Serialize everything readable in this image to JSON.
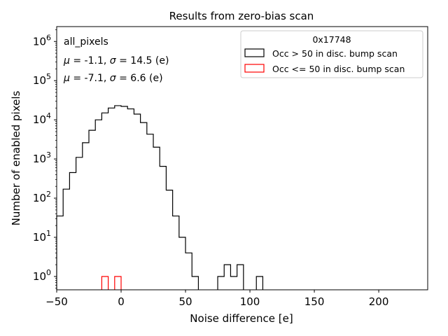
{
  "chart_data": {
    "type": "histogram",
    "title": "Results from zero-bias scan",
    "xlabel": "Noise difference [e]",
    "ylabel": "Number of enabled pixels",
    "xlim": [
      -50,
      238
    ],
    "ylim_log10": [
      -0.34,
      6.38
    ],
    "yscale": "log",
    "grid": false,
    "x_ticks": [
      "−50",
      "0",
      "50",
      "100",
      "150",
      "200"
    ],
    "x_tick_values": [
      -50,
      0,
      50,
      100,
      150,
      200
    ],
    "y_tick_values": [
      1,
      10,
      100,
      1000,
      10000,
      100000,
      1000000
    ],
    "y_ticks": [
      {
        "base": "10",
        "exp": "0"
      },
      {
        "base": "10",
        "exp": "1"
      },
      {
        "base": "10",
        "exp": "2"
      },
      {
        "base": "10",
        "exp": "3"
      },
      {
        "base": "10",
        "exp": "4"
      },
      {
        "base": "10",
        "exp": "5"
      },
      {
        "base": "10",
        "exp": "6"
      }
    ],
    "bin_width": 5,
    "annotations": {
      "label": "all_pixels",
      "stats1": {
        "mu": "μ",
        "mid": " = -1.1, ",
        "sigma": "σ",
        "end": " = 14.5 (e)",
        "color": "#000000"
      },
      "stats2": {
        "mu": "μ",
        "mid": " = -7.1, ",
        "sigma": "σ",
        "end": " = 6.6 (e)",
        "color": "#ff0000"
      }
    },
    "legend": {
      "title": "0x17748",
      "placement": "top-right",
      "entries": [
        {
          "label": "Occ > 50 in disc. bump scan",
          "color": "#000000"
        },
        {
          "label": "Occ <= 50 in disc. bump scan",
          "color": "#ff0000"
        }
      ]
    },
    "series": [
      {
        "name": "Occ > 50 in disc. bump scan",
        "color": "#000000",
        "bins": [
          {
            "x0": -50,
            "count": 35
          },
          {
            "x0": -45,
            "count": 170
          },
          {
            "x0": -40,
            "count": 450
          },
          {
            "x0": -35,
            "count": 1100
          },
          {
            "x0": -30,
            "count": 2600
          },
          {
            "x0": -25,
            "count": 5400
          },
          {
            "x0": -20,
            "count": 10000
          },
          {
            "x0": -15,
            "count": 15000
          },
          {
            "x0": -10,
            "count": 20000
          },
          {
            "x0": -5,
            "count": 23000
          },
          {
            "x0": 0,
            "count": 22000
          },
          {
            "x0": 5,
            "count": 19000
          },
          {
            "x0": 10,
            "count": 14000
          },
          {
            "x0": 15,
            "count": 8500
          },
          {
            "x0": 20,
            "count": 4300
          },
          {
            "x0": 25,
            "count": 2000
          },
          {
            "x0": 30,
            "count": 650
          },
          {
            "x0": 35,
            "count": 160
          },
          {
            "x0": 40,
            "count": 35
          },
          {
            "x0": 45,
            "count": 10
          },
          {
            "x0": 50,
            "count": 4
          },
          {
            "x0": 55,
            "count": 1
          },
          {
            "x0": 60,
            "count": 0
          },
          {
            "x0": 65,
            "count": 0
          },
          {
            "x0": 70,
            "count": 0
          },
          {
            "x0": 75,
            "count": 1
          },
          {
            "x0": 80,
            "count": 2
          },
          {
            "x0": 85,
            "count": 1
          },
          {
            "x0": 90,
            "count": 2
          },
          {
            "x0": 95,
            "count": 0
          },
          {
            "x0": 100,
            "count": 0
          },
          {
            "x0": 105,
            "count": 1
          },
          {
            "x0": 110,
            "count": 0
          }
        ]
      },
      {
        "name": "Occ <= 50 in disc. bump scan",
        "color": "#ff0000",
        "bins": [
          {
            "x0": -15,
            "count": 1
          },
          {
            "x0": -10,
            "count": 0
          },
          {
            "x0": -5,
            "count": 1
          },
          {
            "x0": 0,
            "count": 0
          }
        ]
      }
    ]
  }
}
